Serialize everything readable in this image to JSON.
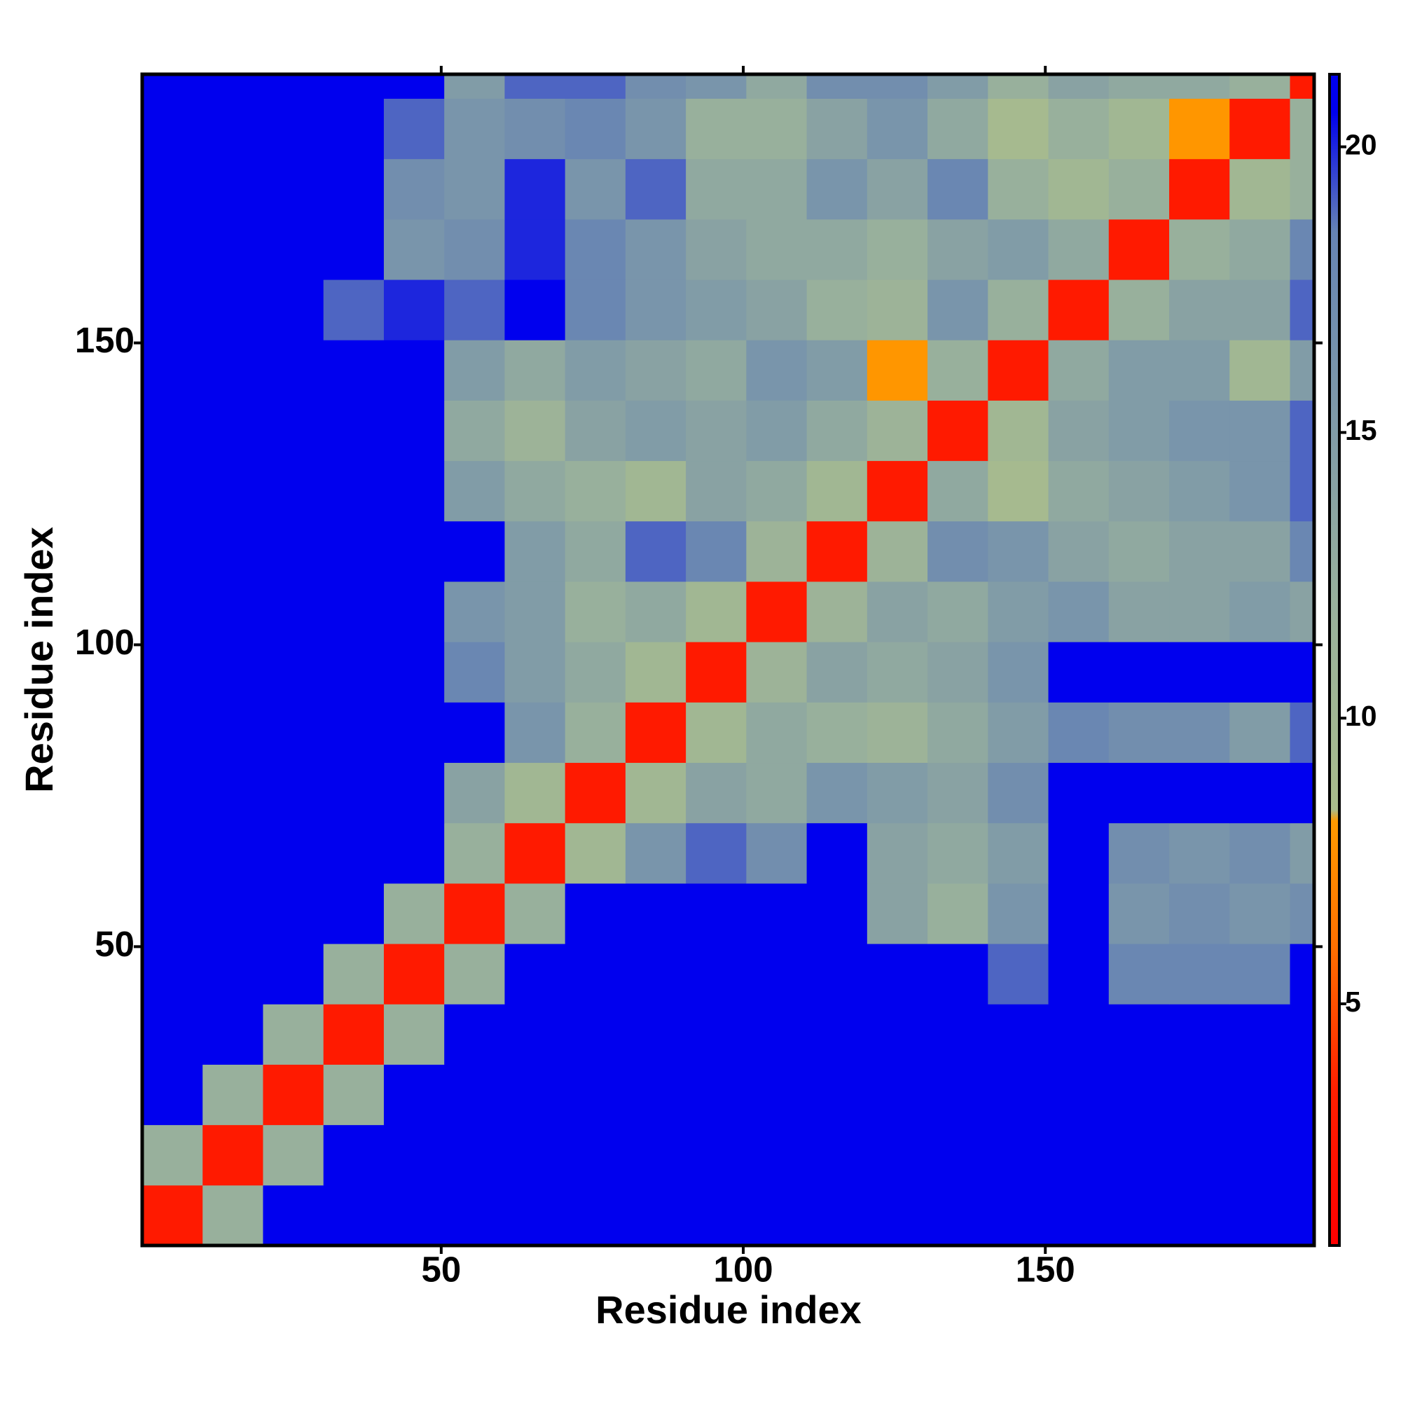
{
  "chart_data": {
    "type": "heatmap",
    "xlabel": "Residue index",
    "ylabel": "Residue index",
    "xbins": [
      0.5,
      10.5,
      20.5,
      30.5,
      40.5,
      50.5,
      60.5,
      70.5,
      80.5,
      90.5,
      100.5,
      110.5,
      120.5,
      130.5,
      140.5,
      150.5,
      160.5,
      170.5,
      180.5,
      190.5,
      194.5
    ],
    "ybins": [
      0.5,
      10.5,
      20.5,
      30.5,
      40.5,
      50.5,
      60.5,
      70.5,
      80.5,
      90.5,
      100.5,
      110.5,
      120.5,
      130.5,
      140.5,
      150.5,
      160.5,
      170.5,
      180.5,
      190.5,
      194.5
    ],
    "values": [
      [
        3,
        12,
        21,
        21,
        21,
        21,
        21,
        21,
        21,
        21,
        21,
        21,
        21,
        21,
        21,
        21,
        21,
        21,
        21,
        21
      ],
      [
        12,
        3,
        12,
        21,
        21,
        21,
        21,
        21,
        21,
        21,
        21,
        21,
        21,
        21,
        21,
        21,
        21,
        21,
        21,
        21
      ],
      [
        21,
        12,
        3,
        12,
        21,
        21,
        21,
        21,
        21,
        21,
        21,
        21,
        21,
        21,
        21,
        21,
        21,
        21,
        21,
        21
      ],
      [
        21,
        21,
        12,
        3,
        12,
        21,
        21,
        21,
        21,
        21,
        21,
        21,
        21,
        21,
        21,
        21,
        21,
        21,
        21,
        21
      ],
      [
        21,
        21,
        21,
        12,
        3,
        12,
        21,
        21,
        21,
        21,
        21,
        21,
        21,
        21,
        19,
        21,
        18,
        18,
        18,
        21
      ],
      [
        21,
        21,
        21,
        21,
        12,
        3,
        12,
        21,
        21,
        21,
        21,
        21,
        14,
        12,
        16,
        21,
        16,
        17,
        16,
        17
      ],
      [
        21,
        21,
        21,
        21,
        21,
        12,
        3,
        10,
        16,
        19,
        17,
        21,
        14,
        13,
        15,
        21,
        17,
        16,
        17,
        15
      ],
      [
        21,
        21,
        21,
        21,
        21,
        14,
        10,
        3,
        10,
        14,
        13,
        16,
        15,
        14,
        17,
        21,
        21,
        21,
        21,
        21
      ],
      [
        21,
        21,
        21,
        21,
        21,
        21,
        16,
        12,
        3,
        10,
        13,
        12,
        11,
        13,
        15,
        18,
        17,
        17,
        15,
        19
      ],
      [
        21,
        21,
        21,
        21,
        21,
        18,
        15,
        13,
        10,
        3,
        11,
        14,
        13,
        14,
        16,
        21,
        21,
        21,
        21,
        21
      ],
      [
        21,
        21,
        21,
        21,
        21,
        16,
        15,
        12,
        13,
        10,
        3,
        11,
        14,
        13,
        15,
        16,
        14,
        14,
        15,
        14
      ],
      [
        21,
        21,
        21,
        21,
        21,
        21,
        15,
        13,
        19,
        18,
        11,
        3,
        11,
        17,
        16,
        14,
        13,
        14,
        14,
        18
      ],
      [
        21,
        21,
        21,
        21,
        21,
        15,
        13,
        12,
        10,
        14,
        13,
        10,
        3,
        13,
        9,
        13,
        14,
        15,
        16,
        19
      ],
      [
        21,
        21,
        21,
        21,
        21,
        13,
        11,
        14,
        15,
        14,
        15,
        13,
        11,
        3,
        10,
        14,
        15,
        16,
        16,
        19
      ],
      [
        21,
        21,
        21,
        21,
        21,
        15,
        13,
        15,
        14,
        13,
        16,
        15,
        8,
        12,
        3,
        13,
        15,
        15,
        10,
        15
      ],
      [
        21,
        21,
        21,
        19,
        20,
        19,
        21,
        18,
        16,
        15,
        14,
        12,
        11,
        16,
        12,
        3,
        12,
        14,
        14,
        19
      ],
      [
        21,
        21,
        21,
        21,
        16,
        17,
        20,
        18,
        16,
        14,
        13,
        13,
        12,
        14,
        15,
        13,
        3,
        12,
        13,
        18
      ],
      [
        21,
        21,
        21,
        21,
        17,
        16,
        20,
        16,
        19,
        13,
        13,
        16,
        14,
        18,
        12,
        10,
        12,
        3,
        10,
        12
      ],
      [
        21,
        21,
        21,
        21,
        19,
        16,
        17,
        18,
        16,
        12,
        12,
        14,
        16,
        13,
        9,
        12,
        10,
        8,
        3,
        12
      ],
      [
        21,
        21,
        21,
        21,
        21,
        15,
        19,
        19,
        17,
        16,
        13,
        17,
        17,
        15,
        12,
        14,
        13,
        13,
        12,
        3
      ]
    ],
    "xlim": [
      0.5,
      194.5
    ],
    "ylim": [
      0.5,
      194.5
    ],
    "xticks": [
      50,
      100,
      150
    ],
    "yticks": [
      50,
      100,
      150
    ],
    "zlim": [
      0.77,
      21.27
    ],
    "zticks": [
      5,
      10,
      15,
      20
    ],
    "colorscale": [
      [
        0.77,
        "#ff0000"
      ],
      [
        3.5,
        "#ff2000"
      ],
      [
        6,
        "#ff7000"
      ],
      [
        8.2,
        "#ff9a00"
      ],
      [
        8.4,
        "#a9bc8c"
      ],
      [
        12,
        "#98b09c"
      ],
      [
        18.5,
        "#6684b4"
      ],
      [
        20.6,
        "#0000ee"
      ]
    ]
  }
}
